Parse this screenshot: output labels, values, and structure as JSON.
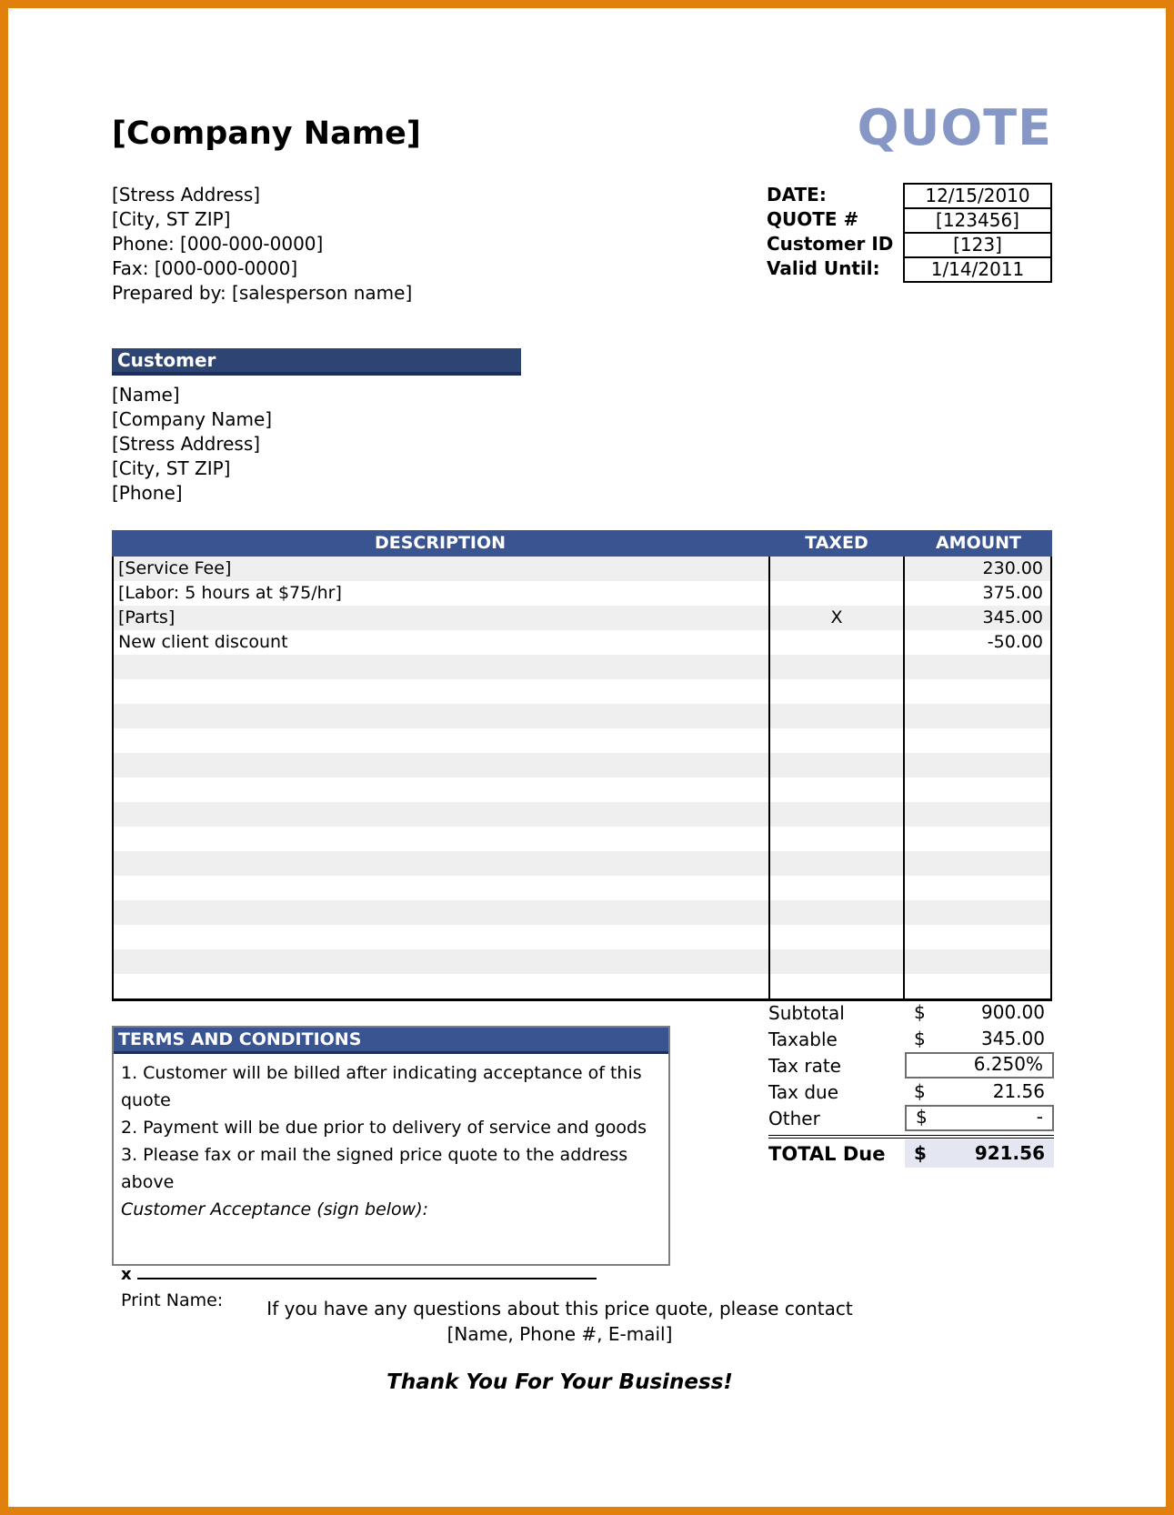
{
  "colors": {
    "frame_orange": "#E2800D",
    "bar_navy_dark": "#2E4573",
    "bar_blue": "#3A5391",
    "quote_title_blue": "#8697C6",
    "row_stripe_gray": "#EFEFEF",
    "total_cell_bg": "#E4E7F2"
  },
  "header": {
    "company_name": "[Company Name]",
    "doc_title": "QUOTE",
    "address_lines": [
      "[Stress Address]",
      "[City, ST  ZIP]",
      "Phone: [000-000-0000]",
      "Fax: [000-000-0000]",
      "Prepared by: [salesperson name]"
    ]
  },
  "quote_info": {
    "rows": [
      {
        "label": "DATE:",
        "value": "12/15/2010"
      },
      {
        "label": "QUOTE #",
        "value": "[123456]"
      },
      {
        "label": "Customer ID",
        "value": "[123]"
      },
      {
        "label": "Valid Until:",
        "value": "1/14/2011"
      }
    ]
  },
  "customer": {
    "title": "Customer",
    "lines": [
      "[Name]",
      "[Company Name]",
      "[Stress Address]",
      "[City, ST  ZIP]",
      "[Phone]"
    ]
  },
  "items_table": {
    "headers": {
      "description": "DESCRIPTION",
      "taxed": "TAXED",
      "amount": "AMOUNT"
    },
    "rows": [
      {
        "description": "[Service Fee]",
        "taxed": "",
        "amount": "230.00"
      },
      {
        "description": "[Labor: 5 hours at $75/hr]",
        "taxed": "",
        "amount": "375.00"
      },
      {
        "description": "[Parts]",
        "taxed": "X",
        "amount": "345.00"
      },
      {
        "description": "New client discount",
        "taxed": "",
        "amount": "-50.00"
      }
    ],
    "empty_row_count": 14
  },
  "summary": {
    "rows": [
      {
        "label": "Subtotal",
        "currency": "$",
        "value": "900.00",
        "boxed": false
      },
      {
        "label": "Taxable",
        "currency": "$",
        "value": "345.00",
        "boxed": false
      },
      {
        "label": "Tax rate",
        "currency": "",
        "value": "6.250%",
        "boxed": true
      },
      {
        "label": "Tax due",
        "currency": "$",
        "value": "21.56",
        "boxed": false
      },
      {
        "label": "Other",
        "currency": "$",
        "value": "-",
        "boxed": true
      }
    ],
    "total": {
      "label": "TOTAL Due",
      "currency": "$",
      "value": "921.56"
    }
  },
  "terms": {
    "title": "TERMS AND CONDITIONS",
    "items": [
      "1. Customer will be billed after indicating acceptance of this quote",
      "2. Payment will be due prior to delivery of service and goods",
      "3. Please fax or mail the signed price quote to the address above"
    ],
    "acceptance_label": "Customer Acceptance (sign below):",
    "signature_prefix": "x",
    "print_name_label": "Print Name:"
  },
  "footer": {
    "contact_line1": "If you have any questions about this price quote, please contact",
    "contact_line2": "[Name, Phone #, E-mail]",
    "thanks": "Thank You For Your Business!"
  }
}
